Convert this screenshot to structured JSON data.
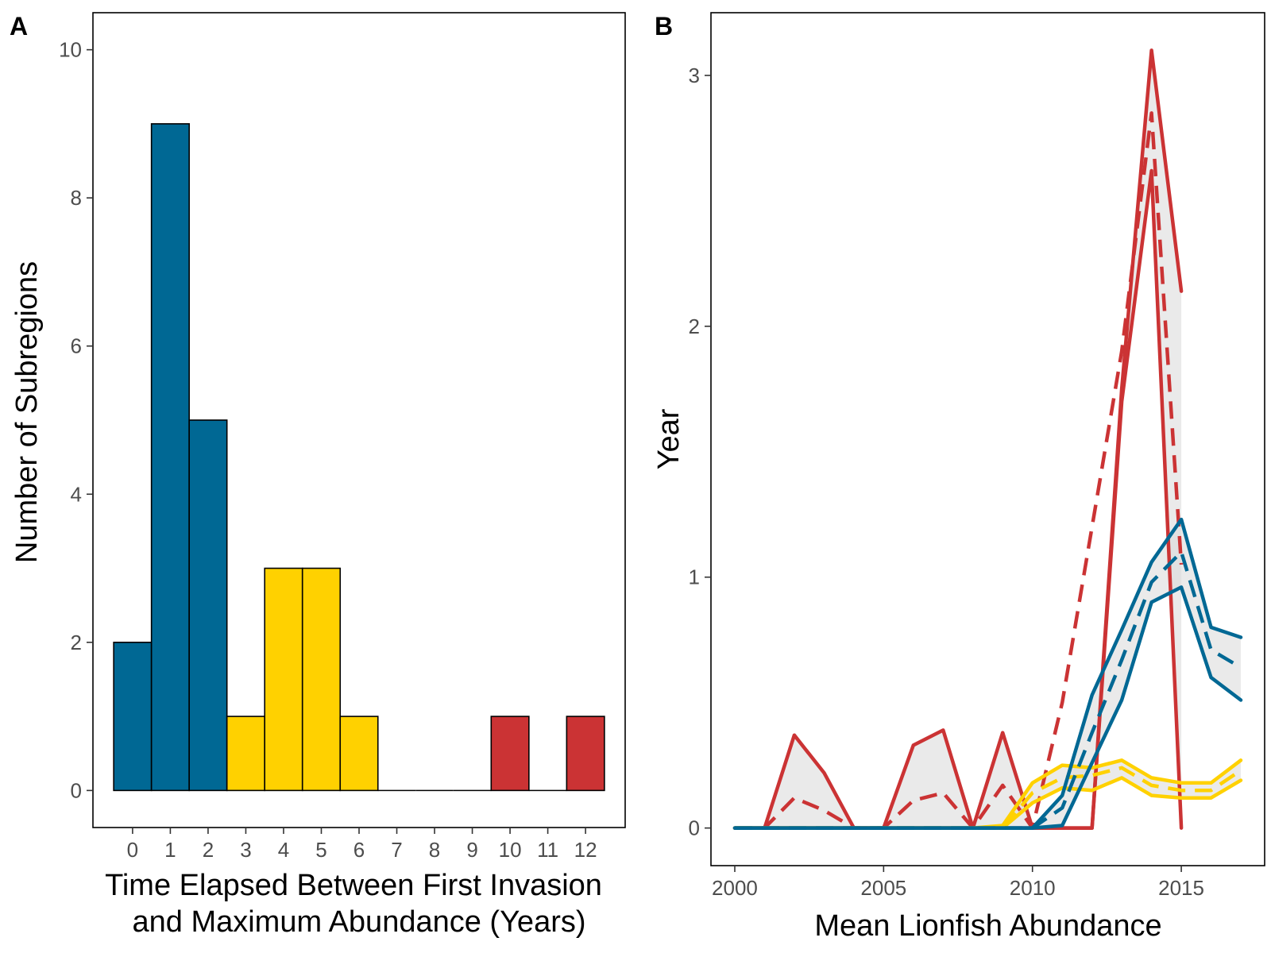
{
  "colors": {
    "early": "#006894",
    "mid": "#FFD100",
    "late": "#CB3334",
    "ribbon": "#D9D9D9",
    "frame": "#000000",
    "tick_text": "#4D4D4D"
  },
  "chart_data": [
    {
      "panel": "A",
      "type": "bar",
      "xlabel_line1": "Time Elapsed Between First Invasion",
      "xlabel_line2": "and Maximum Abundance (Years)",
      "ylabel": "Number of Subregions",
      "categories": [
        "0",
        "1",
        "2",
        "3",
        "4",
        "5",
        "6",
        "7",
        "8",
        "9",
        "10",
        "11",
        "12"
      ],
      "values": [
        2,
        9,
        5,
        1,
        3,
        3,
        1,
        0,
        0,
        0,
        1,
        0,
        1
      ],
      "bar_colors": [
        "early",
        "early",
        "early",
        "mid",
        "mid",
        "mid",
        "mid",
        "none",
        "none",
        "none",
        "late",
        "none",
        "late"
      ],
      "ylim": [
        -0.5,
        10.5
      ],
      "yticks": [
        0,
        2,
        4,
        6,
        8,
        10
      ],
      "grid": false
    },
    {
      "panel": "B",
      "type": "line",
      "xlabel": "Mean Lionfish Abundance",
      "ylabel": "Year",
      "xlim": [
        1999.2,
        2017.8
      ],
      "ylim": [
        -0.15,
        3.25
      ],
      "xticks": [
        2000,
        2005,
        2010,
        2015
      ],
      "yticks": [
        0,
        1,
        2,
        3
      ],
      "grid": false,
      "series": [
        {
          "color": "late",
          "x": [
            2000,
            2001,
            2002,
            2003,
            2004,
            2005,
            2006,
            2007,
            2008,
            2009,
            2010,
            2011,
            2012,
            2013,
            2014,
            2015
          ],
          "mean": [
            0,
            0,
            0.12,
            0.07,
            0,
            0,
            0.11,
            0.14,
            0,
            0.17,
            0,
            0.5,
            1.2,
            1.9,
            2.85,
            1.05
          ],
          "lower": [
            0,
            0,
            0,
            0,
            0,
            0,
            0,
            0,
            0,
            0,
            0,
            0,
            0,
            1.7,
            2.62,
            0
          ],
          "upper": [
            0,
            0,
            0.37,
            0.22,
            0,
            0,
            0.33,
            0.39,
            0,
            0.38,
            0,
            0,
            0,
            1.75,
            3.1,
            2.14
          ]
        },
        {
          "color": "mid",
          "x": [
            2000,
            2001,
            2002,
            2003,
            2004,
            2005,
            2006,
            2007,
            2008,
            2009,
            2010,
            2011,
            2012,
            2013,
            2014,
            2015,
            2016,
            2017
          ],
          "mean": [
            0,
            0,
            0,
            0,
            0,
            0,
            0,
            0,
            0,
            0,
            0.14,
            0.2,
            0.21,
            0.24,
            0.17,
            0.15,
            0.15,
            0.23
          ],
          "lower": [
            0,
            0,
            0,
            0,
            0,
            0,
            0,
            0,
            0,
            0,
            0.1,
            0.16,
            0.15,
            0.2,
            0.13,
            0.12,
            0.12,
            0.19
          ],
          "upper": [
            0,
            0,
            0,
            0,
            0,
            0,
            0,
            0,
            0,
            0.01,
            0.18,
            0.25,
            0.24,
            0.27,
            0.2,
            0.18,
            0.18,
            0.27
          ]
        },
        {
          "color": "early",
          "x": [
            2000,
            2001,
            2002,
            2003,
            2004,
            2005,
            2006,
            2007,
            2008,
            2009,
            2010,
            2011,
            2012,
            2013,
            2014,
            2015,
            2016,
            2017
          ],
          "mean": [
            0,
            0,
            0,
            0,
            0,
            0,
            0,
            0,
            0,
            0,
            0,
            0.08,
            0.38,
            0.67,
            0.98,
            1.1,
            0.71,
            0.64
          ],
          "lower": [
            0,
            0,
            0,
            0,
            0,
            0,
            0,
            0,
            0,
            0,
            0,
            0.01,
            0.26,
            0.51,
            0.9,
            0.96,
            0.6,
            0.51
          ],
          "upper": [
            0,
            0,
            0,
            0,
            0,
            0,
            0,
            0,
            0,
            0,
            0,
            0.13,
            0.53,
            0.79,
            1.06,
            1.23,
            0.8,
            0.76
          ]
        }
      ]
    }
  ]
}
